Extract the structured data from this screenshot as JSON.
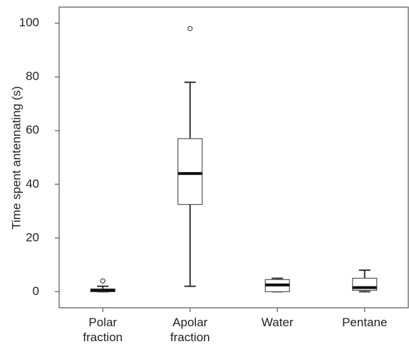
{
  "chart_data": {
    "type": "box",
    "y_label": "Time spent antennating (s)",
    "categories": [
      "Polar fraction",
      "Apolar fraction",
      "Water",
      "Pentane"
    ],
    "min": [
      0,
      2,
      0,
      0
    ],
    "q1": [
      0,
      32.5,
      0,
      0.5
    ],
    "median": [
      0.5,
      44,
      2.5,
      1.5
    ],
    "q3": [
      1,
      57,
      4.5,
      5
    ],
    "max": [
      2,
      78,
      5,
      8
    ],
    "outliers": [
      [
        4
      ],
      [
        98
      ],
      [],
      []
    ],
    "color": "#333333",
    "ylim": [
      -6,
      106
    ],
    "yticks": [
      0,
      20,
      40,
      60,
      80,
      100
    ]
  }
}
